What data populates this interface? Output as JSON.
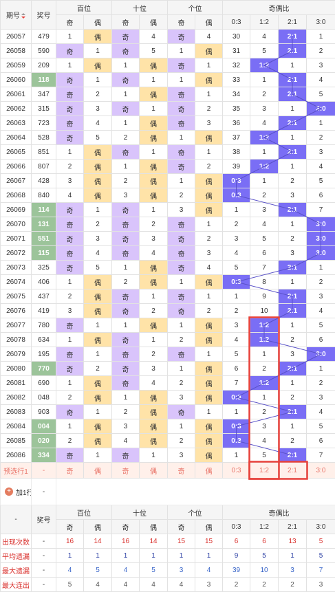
{
  "header": {
    "issue": "期号",
    "number": "奖号",
    "hundreds": "百位",
    "tens": "十位",
    "ones": "个位",
    "ratio": "奇偶比",
    "odd": "奇",
    "even": "偶",
    "r03": "0:3",
    "r12": "1:2",
    "r21": "2:1",
    "r30": "3:0"
  },
  "rows": [
    {
      "issue": "26057",
      "num": "479",
      "g": false,
      "h": [
        1,
        "偶"
      ],
      "t": [
        "奇",
        4
      ],
      "o": [
        "奇",
        4
      ],
      "r": [
        30,
        4,
        "2:1",
        1
      ],
      "hit": 2
    },
    {
      "issue": "26058",
      "num": "590",
      "g": false,
      "h": [
        "奇",
        1
      ],
      "t": [
        "奇",
        5
      ],
      "o": [
        1,
        "偶"
      ],
      "r": [
        31,
        5,
        "2:1",
        2
      ],
      "hit": 2
    },
    {
      "issue": "26059",
      "num": "209",
      "g": false,
      "h": [
        1,
        "偶"
      ],
      "t": [
        1,
        "偶"
      ],
      "o": [
        "奇",
        1
      ],
      "r": [
        32,
        "1:2",
        1,
        3
      ],
      "hit": 1
    },
    {
      "issue": "26060",
      "num": "118",
      "g": true,
      "h": [
        "奇",
        1
      ],
      "t": [
        "奇",
        1
      ],
      "o": [
        1,
        "偶"
      ],
      "r": [
        33,
        1,
        "2:1",
        4
      ],
      "hit": 2
    },
    {
      "issue": "26061",
      "num": "347",
      "g": false,
      "h": [
        "奇",
        2
      ],
      "t": [
        1,
        "偶"
      ],
      "o": [
        "奇",
        1
      ],
      "r": [
        34,
        2,
        "2:1",
        5
      ],
      "hit": 2
    },
    {
      "issue": "26062",
      "num": "315",
      "g": false,
      "h": [
        "奇",
        3
      ],
      "t": [
        "奇",
        1
      ],
      "o": [
        "奇",
        2
      ],
      "r": [
        35,
        3,
        1,
        "3:0"
      ],
      "hit": 3
    },
    {
      "issue": "26063",
      "num": "723",
      "g": false,
      "h": [
        "奇",
        4
      ],
      "t": [
        1,
        "偶"
      ],
      "o": [
        "奇",
        3
      ],
      "r": [
        36,
        4,
        "2:1",
        1
      ],
      "hit": 2
    },
    {
      "issue": "26064",
      "num": "528",
      "g": false,
      "h": [
        "奇",
        5
      ],
      "t": [
        2,
        "偶"
      ],
      "o": [
        1,
        "偶"
      ],
      "r": [
        37,
        "1:2",
        1,
        2
      ],
      "hit": 1
    },
    {
      "issue": "26065",
      "num": "851",
      "g": false,
      "h": [
        1,
        "偶"
      ],
      "t": [
        "奇",
        1
      ],
      "o": [
        "奇",
        1
      ],
      "r": [
        38,
        1,
        "2:1",
        3
      ],
      "hit": 2
    },
    {
      "issue": "26066",
      "num": "807",
      "g": false,
      "h": [
        2,
        "偶"
      ],
      "t": [
        1,
        "偶"
      ],
      "o": [
        "奇",
        2
      ],
      "r": [
        39,
        "1:2",
        1,
        4
      ],
      "hit": 1
    },
    {
      "issue": "26067",
      "num": "428",
      "g": false,
      "h": [
        3,
        "偶"
      ],
      "t": [
        2,
        "偶"
      ],
      "o": [
        1,
        "偶"
      ],
      "r": [
        "0:3",
        1,
        2,
        5
      ],
      "hit": 0
    },
    {
      "issue": "26068",
      "num": "840",
      "g": false,
      "h": [
        4,
        "偶"
      ],
      "t": [
        3,
        "偶"
      ],
      "o": [
        2,
        "偶"
      ],
      "r": [
        "0:3",
        2,
        3,
        6
      ],
      "hit": 0
    },
    {
      "issue": "26069",
      "num": "114",
      "g": true,
      "h": [
        "奇",
        1
      ],
      "t": [
        "奇",
        1
      ],
      "o": [
        3,
        "偶"
      ],
      "r": [
        1,
        3,
        "2:1",
        7
      ],
      "hit": 2
    },
    {
      "issue": "26070",
      "num": "131",
      "g": true,
      "h": [
        "奇",
        2
      ],
      "t": [
        "奇",
        2
      ],
      "o": [
        "奇",
        1
      ],
      "r": [
        2,
        4,
        1,
        "3:0"
      ],
      "hit": 3
    },
    {
      "issue": "26071",
      "num": "551",
      "g": true,
      "h": [
        "奇",
        3
      ],
      "t": [
        "奇",
        3
      ],
      "o": [
        "奇",
        2
      ],
      "r": [
        3,
        5,
        2,
        "3:0"
      ],
      "hit": 3
    },
    {
      "issue": "26072",
      "num": "115",
      "g": true,
      "h": [
        "奇",
        4
      ],
      "t": [
        "奇",
        4
      ],
      "o": [
        "奇",
        3
      ],
      "r": [
        4,
        6,
        3,
        "3:0"
      ],
      "hit": 3
    },
    {
      "issue": "26073",
      "num": "325",
      "g": false,
      "h": [
        "奇",
        5
      ],
      "t": [
        1,
        "偶"
      ],
      "o": [
        "奇",
        4
      ],
      "r": [
        5,
        7,
        "2:1",
        1
      ],
      "hit": 2
    },
    {
      "issue": "26074",
      "num": "406",
      "g": false,
      "h": [
        1,
        "偶"
      ],
      "t": [
        2,
        "偶"
      ],
      "o": [
        1,
        "偶"
      ],
      "r": [
        "0:3",
        8,
        1,
        2
      ],
      "hit": 0
    },
    {
      "issue": "26075",
      "num": "437",
      "g": false,
      "h": [
        2,
        "偶"
      ],
      "t": [
        "奇",
        1
      ],
      "o": [
        "奇",
        1
      ],
      "r": [
        1,
        9,
        "2:1",
        3
      ],
      "hit": 2
    },
    {
      "issue": "26076",
      "num": "419",
      "g": false,
      "h": [
        3,
        "偶"
      ],
      "t": [
        "奇",
        2
      ],
      "o": [
        "奇",
        2
      ],
      "r": [
        2,
        10,
        "2:1",
        4
      ],
      "hit": 2
    },
    {
      "issue": "26077",
      "num": "780",
      "g": false,
      "h": [
        "奇",
        1
      ],
      "t": [
        1,
        "偶"
      ],
      "o": [
        1,
        "偶"
      ],
      "r": [
        3,
        "1:2",
        1,
        5
      ],
      "hit": 1
    },
    {
      "issue": "26078",
      "num": "634",
      "g": false,
      "h": [
        1,
        "偶"
      ],
      "t": [
        "奇",
        1
      ],
      "o": [
        2,
        "偶"
      ],
      "r": [
        4,
        "1:2",
        2,
        6
      ],
      "hit": 1
    },
    {
      "issue": "26079",
      "num": "195",
      "g": false,
      "h": [
        "奇",
        1
      ],
      "t": [
        "奇",
        2
      ],
      "o": [
        "奇",
        1
      ],
      "r": [
        5,
        1,
        3,
        "3:0"
      ],
      "hit": 3
    },
    {
      "issue": "26080",
      "num": "770",
      "g": true,
      "h": [
        "奇",
        2
      ],
      "t": [
        "奇",
        3
      ],
      "o": [
        1,
        "偶"
      ],
      "r": [
        6,
        2,
        "2:1",
        1
      ],
      "hit": 2
    },
    {
      "issue": "26081",
      "num": "690",
      "g": false,
      "h": [
        1,
        "偶"
      ],
      "t": [
        "奇",
        4
      ],
      "o": [
        2,
        "偶"
      ],
      "r": [
        7,
        "1:2",
        1,
        2
      ],
      "hit": 1
    },
    {
      "issue": "26082",
      "num": "048",
      "g": false,
      "h": [
        2,
        "偶"
      ],
      "t": [
        1,
        "偶"
      ],
      "o": [
        3,
        "偶"
      ],
      "r": [
        "0:3",
        1,
        2,
        3
      ],
      "hit": 0
    },
    {
      "issue": "26083",
      "num": "903",
      "g": false,
      "h": [
        "奇",
        1
      ],
      "t": [
        2,
        "偶"
      ],
      "o": [
        "奇",
        1
      ],
      "r": [
        1,
        2,
        "2:1",
        4
      ],
      "hit": 2
    },
    {
      "issue": "26084",
      "num": "004",
      "g": true,
      "h": [
        1,
        "偶"
      ],
      "t": [
        3,
        "偶"
      ],
      "o": [
        1,
        "偶"
      ],
      "r": [
        "0:3",
        3,
        1,
        5
      ],
      "hit": 0
    },
    {
      "issue": "26085",
      "num": "020",
      "g": true,
      "h": [
        2,
        "偶"
      ],
      "t": [
        4,
        "偶"
      ],
      "o": [
        2,
        "偶"
      ],
      "r": [
        "0:3",
        4,
        2,
        6
      ],
      "hit": 0
    },
    {
      "issue": "26086",
      "num": "334",
      "g": true,
      "h": [
        "奇",
        1
      ],
      "t": [
        "奇",
        1
      ],
      "o": [
        3,
        "偶"
      ],
      "r": [
        1,
        5,
        "2:1",
        7
      ],
      "hit": 2
    }
  ],
  "predict": {
    "label": "预选行1",
    "num": "-",
    "cells": [
      "奇",
      "偶",
      "奇",
      "偶",
      "奇",
      "偶",
      "0:3",
      "1:2",
      "2:1",
      "3:0"
    ]
  },
  "add_row": {
    "label": "加1行",
    "value": "-"
  },
  "footer_header": {
    "dash": "-",
    "number": "奖号",
    "hundreds": "百位",
    "tens": "十位",
    "ones": "个位",
    "ratio": "奇偶比",
    "sub": [
      "奇",
      "偶",
      "奇",
      "偶",
      "奇",
      "偶",
      "0:3",
      "1:2",
      "2:1",
      "3:0"
    ]
  },
  "stats": [
    {
      "label": "出现次数",
      "num": "-",
      "vals": [
        "16",
        "14",
        "16",
        "14",
        "15",
        "15",
        "6",
        "6",
        "13",
        "5"
      ],
      "cls": "v-red"
    },
    {
      "label": "平均遗漏",
      "num": "-",
      "vals": [
        "1",
        "1",
        "1",
        "1",
        "1",
        "1",
        "9",
        "5",
        "1",
        "5"
      ],
      "cls": "v-navy"
    },
    {
      "label": "最大遗漏",
      "num": "-",
      "vals": [
        "4",
        "5",
        "4",
        "5",
        "3",
        "4",
        "39",
        "10",
        "3",
        "7"
      ],
      "cls": "v-blue"
    },
    {
      "label": "最大连出",
      "num": "-",
      "vals": [
        "5",
        "4",
        "4",
        "4",
        "4",
        "3",
        "2",
        "2",
        "2",
        "3"
      ],
      "cls": "v-gray"
    }
  ],
  "colors": {
    "odd": "#d9c4fb",
    "even": "#ffe3a8",
    "hit": "#7a6ef5",
    "green": "#9cc49a",
    "highlight": "#e8413a"
  }
}
